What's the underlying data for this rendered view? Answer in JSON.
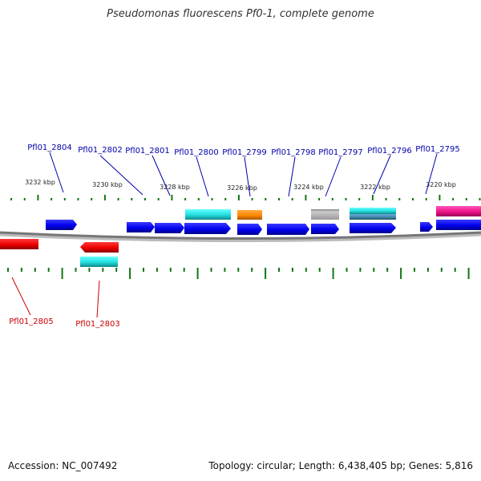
{
  "title": "Pseudomonas fluorescens Pf0-1, complete genome",
  "footer": {
    "accession": "Accession: NC_007492",
    "stats": "Topology: circular; Length: 6,438,405 bp; Genes: 5,816"
  },
  "colors": {
    "forward_label": "#0000aa",
    "reverse_label": "#cc0000",
    "tick": "#117711",
    "backbone": "#888888",
    "cds": "#0000ee",
    "reverse_cds": "#ee0000",
    "cyan": "#22dddd",
    "orange": "#ff8800",
    "gray": "#bbbbbb",
    "teal": "#4488aa",
    "magenta": "#ee1188"
  },
  "scale_labels": [
    "3232 kbp",
    "3230 kbp",
    "3228 kbp",
    "3226 kbp",
    "3224 kbp",
    "3222 kbp",
    "3220 kbp"
  ],
  "forward_genes": [
    "Pfl01_2804",
    "Pfl01_2802",
    "Pfl01_2801",
    "Pfl01_2800",
    "Pfl01_2799",
    "Pfl01_2798",
    "Pfl01_2797",
    "Pfl01_2796",
    "Pfl01_2795"
  ],
  "reverse_genes": [
    "Pfl01_2805",
    "Pfl01_2803"
  ]
}
